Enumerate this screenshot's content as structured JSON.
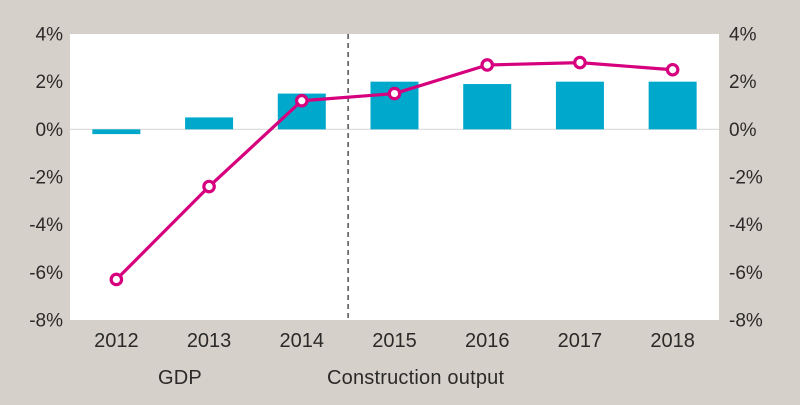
{
  "chart_data": {
    "type": "combo-bar-line",
    "title": "",
    "categories": [
      "2012",
      "2013",
      "2014",
      "2015",
      "2016",
      "2017",
      "2018"
    ],
    "series": [
      {
        "name": "GDP",
        "type": "bar",
        "color": "#00a8cc",
        "values": [
          -0.2,
          0.5,
          1.5,
          2.0,
          1.9,
          2.0,
          2.0
        ]
      },
      {
        "name": "Construction output",
        "type": "line",
        "color": "#d6007f",
        "values": [
          -6.3,
          -2.4,
          1.2,
          1.5,
          2.7,
          2.8,
          2.5
        ]
      }
    ],
    "ylim": [
      -8,
      4
    ],
    "y_ticks": [
      {
        "value": 4,
        "label": "4%"
      },
      {
        "value": 2,
        "label": "2%"
      },
      {
        "value": 0,
        "label": "0%"
      },
      {
        "value": -2,
        "label": "-2%"
      },
      {
        "value": -4,
        "label": "-4%"
      },
      {
        "value": -6,
        "label": "-6%"
      },
      {
        "value": -8,
        "label": "-8%"
      }
    ],
    "y_axis_sides": "both",
    "grid": "zero-line-only",
    "divider": {
      "style": "dashed",
      "between": [
        "2014",
        "2015"
      ]
    },
    "legend": {
      "position": "bottom",
      "items": [
        "GDP",
        "Construction output"
      ]
    }
  },
  "colors": {
    "background": "#d6d0cb",
    "plot_background": "#ffffff",
    "bar": "#00a8cc",
    "line": "#d6007f",
    "marker_fill": "#ffffff",
    "zero_line": "#d9d9d9",
    "divider": "#6b6b6b",
    "text": "#2b2a28"
  }
}
